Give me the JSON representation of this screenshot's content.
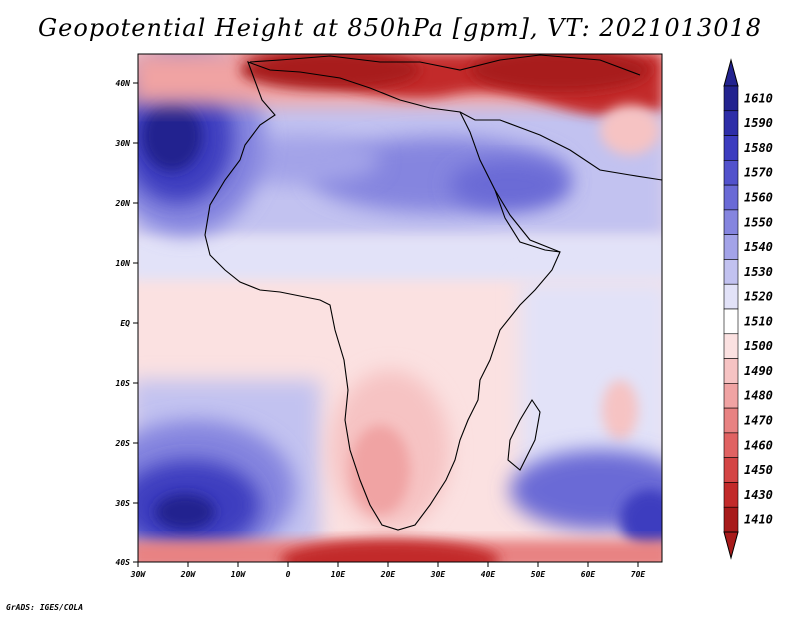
{
  "title": "Geopotential Height at 850hPa [gpm], VT: 2021013018",
  "credit": "GrADS: IGES/COLA",
  "map": {
    "region": "Africa",
    "lon_range": [
      -30,
      75
    ],
    "lat_range": [
      -40,
      45
    ],
    "x_ticks": [
      "30W",
      "20W",
      "10W",
      "0",
      "10E",
      "20E",
      "30E",
      "40E",
      "50E",
      "60E",
      "70E"
    ],
    "y_ticks": [
      "40S",
      "30S",
      "20S",
      "10S",
      "EQ",
      "10N",
      "20N",
      "30N",
      "40N"
    ]
  },
  "colorbar": {
    "labels": [
      "1610",
      "1590",
      "1580",
      "1570",
      "1560",
      "1550",
      "1540",
      "1530",
      "1520",
      "1510",
      "1500",
      "1490",
      "1480",
      "1470",
      "1460",
      "1450",
      "1430",
      "1410"
    ],
    "colors": [
      "#23238f",
      "#2e2ea8",
      "#3c3cbf",
      "#5252cc",
      "#6a6ad6",
      "#8585df",
      "#a3a3e8",
      "#c2c2f0",
      "#e2e2f8",
      "#ffffff",
      "#fbe1e1",
      "#f6c3c3",
      "#f0a3a3",
      "#e88282",
      "#e06262",
      "#d44545",
      "#c22a2a",
      "#a81b1b"
    ]
  }
}
